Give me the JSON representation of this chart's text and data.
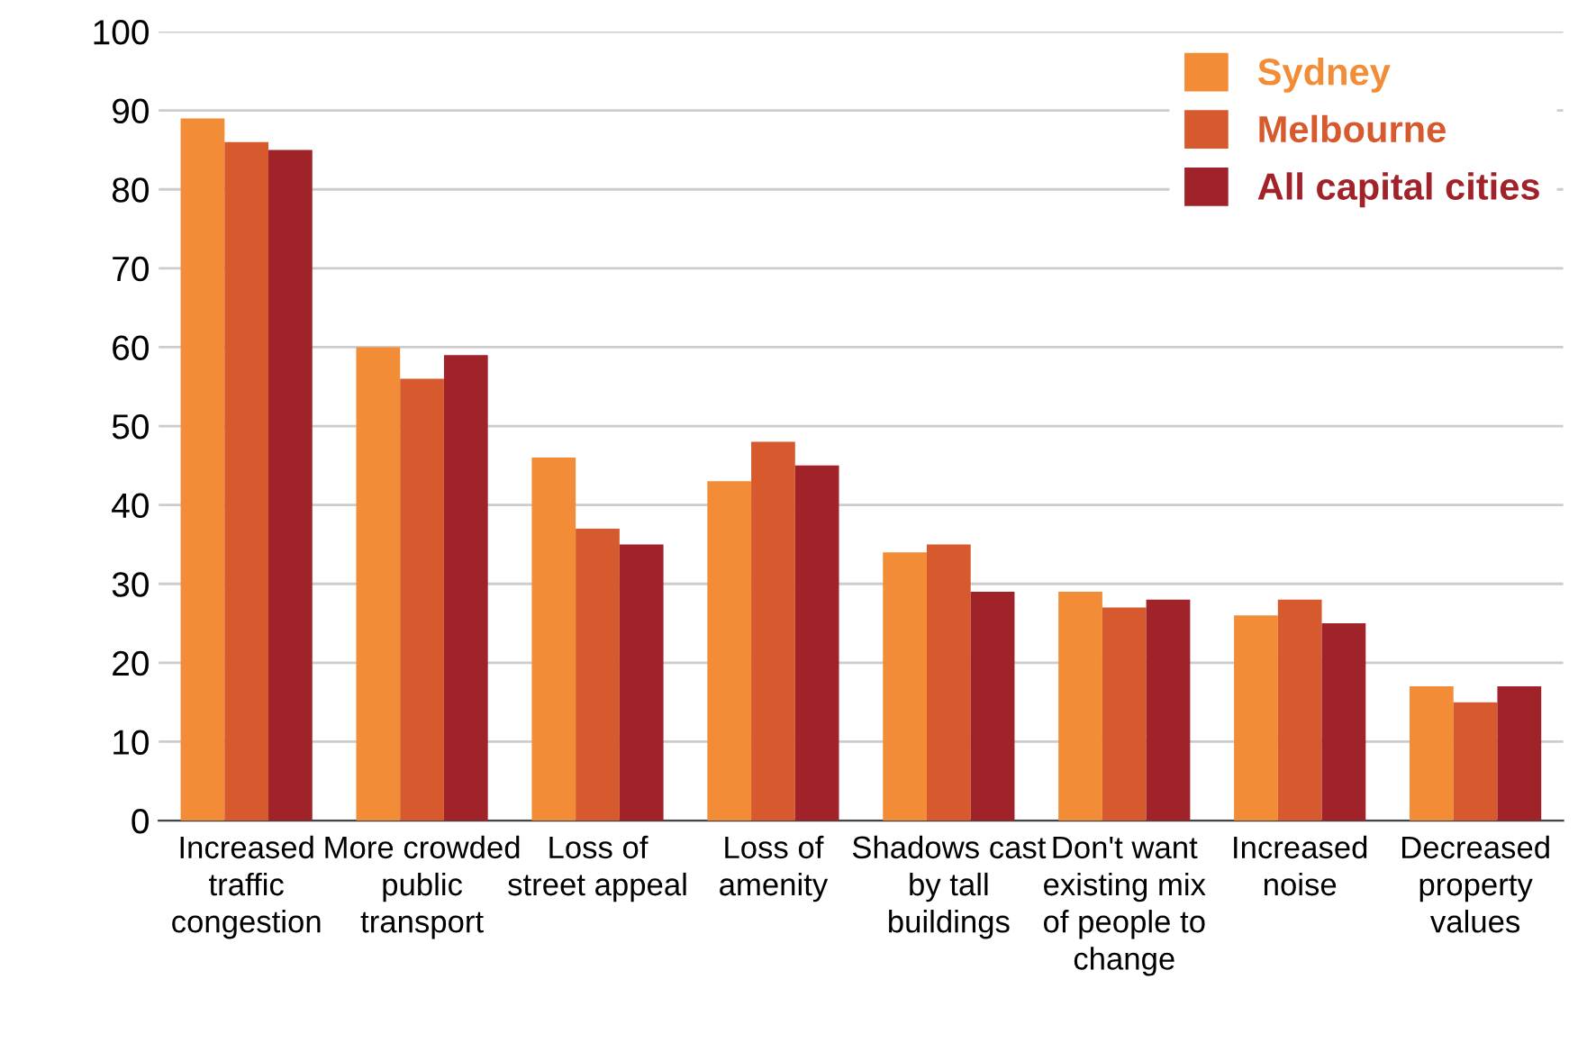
{
  "chart_data": {
    "type": "bar",
    "categories": [
      "Increased traffic congestion",
      "More crowded public transport",
      "Loss of street appeal",
      "Loss of amenity",
      "Shadows cast by tall buildings",
      "Don't want existing mix of people to change",
      "Increased noise",
      "Decreased property values"
    ],
    "series": [
      {
        "name": "Sydney",
        "color": "#f28c36",
        "values": [
          89,
          60,
          46,
          43,
          34,
          29,
          26,
          17
        ]
      },
      {
        "name": "Melbourne",
        "color": "#d65a2e",
        "values": [
          86,
          56,
          37,
          48,
          35,
          27,
          28,
          15
        ]
      },
      {
        "name": "All capital cities",
        "color": "#a0232a",
        "values": [
          85,
          59,
          35,
          45,
          29,
          28,
          25,
          17
        ]
      }
    ],
    "ylim": [
      0,
      100
    ],
    "yticks": [
      0,
      10,
      20,
      30,
      40,
      50,
      60,
      70,
      80,
      90,
      100
    ],
    "grid": "y",
    "legend": "top right"
  }
}
